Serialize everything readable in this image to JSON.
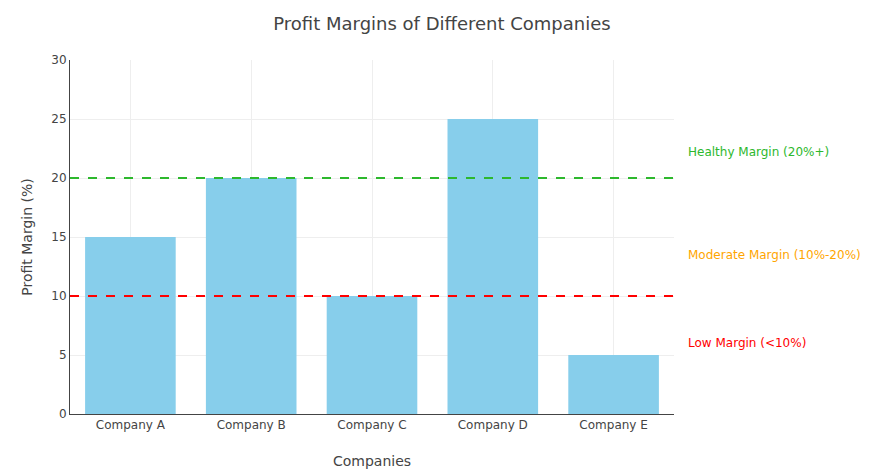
{
  "chart_data": {
    "type": "bar",
    "title": "Profit Margins of Different Companies",
    "xlabel": "Companies",
    "ylabel": "Profit Margin (%)",
    "categories": [
      "Company A",
      "Company B",
      "Company C",
      "Company D",
      "Company E"
    ],
    "values": [
      15,
      20,
      10,
      25,
      5
    ],
    "color": "#87CEEB",
    "ylim": [
      0,
      30
    ],
    "yticks": [
      0,
      5,
      10,
      15,
      20,
      25,
      30
    ],
    "grid": true,
    "reference_lines": [
      {
        "y": 20,
        "color": "#2db82d"
      },
      {
        "y": 10,
        "color": "#ff0000"
      }
    ],
    "annotations": [
      {
        "text": "Healthy Margin (20%+)",
        "color": "#2db82d"
      },
      {
        "text": "Moderate Margin (10%-20%)",
        "color": "#FFA500"
      },
      {
        "text": "Low Margin (<10%)",
        "color": "#ff0000"
      }
    ]
  }
}
